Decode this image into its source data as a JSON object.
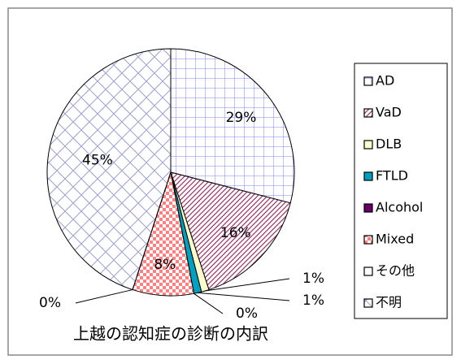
{
  "chart_data": {
    "type": "pie",
    "title": "上越の認知症の診断の内訳",
    "categories": [
      "AD",
      "VaD",
      "DLB",
      "FTLD",
      "Alcohol",
      "Mixed",
      "その他",
      "不明"
    ],
    "values": [
      29,
      16,
      1,
      1,
      0,
      8,
      0,
      45
    ],
    "value_labels": [
      "29%",
      "16%",
      "1%",
      "1%",
      "0%",
      "8%",
      "0%",
      "45%"
    ],
    "colors": [
      "#8080ff",
      "#993366",
      "#ffffcc",
      "#00a0c0",
      "#660066",
      "#ff8080",
      "#ffffff",
      "#a0a0d0"
    ],
    "legend": "right"
  }
}
